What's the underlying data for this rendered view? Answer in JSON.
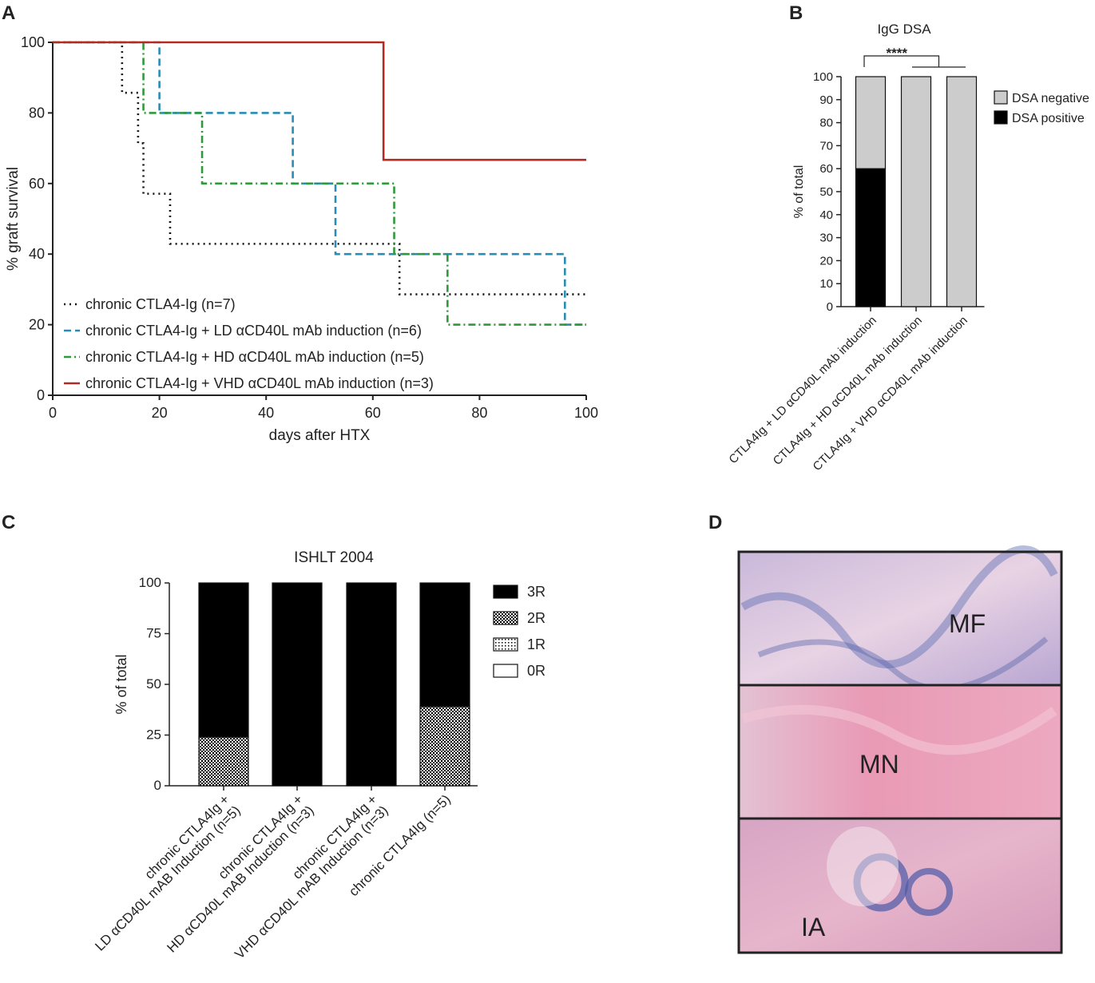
{
  "panel_labels": [
    "A",
    "B",
    "C",
    "D"
  ],
  "image": {
    "labels": [
      "MF",
      "MN",
      "IA"
    ]
  },
  "chart_data": [
    {
      "type": "line",
      "xlabel": "days after HTX",
      "ylabel": "% graft survival",
      "xlim": [
        0,
        100
      ],
      "ylim": [
        0,
        100
      ],
      "xticks": [
        0,
        20,
        40,
        60,
        80,
        100
      ],
      "yticks": [
        0,
        20,
        40,
        60,
        80,
        100
      ],
      "legend": "lower left",
      "series": [
        {
          "name": "chronic CTLA4-Ig (n=7)",
          "color": "#111111",
          "linestyle": "dotted",
          "x": [
            0,
            13,
            13,
            16,
            16,
            17,
            17,
            22,
            22,
            65,
            65,
            100
          ],
          "values": [
            100,
            100,
            85.7,
            85.7,
            71.4,
            71.4,
            57.1,
            57.1,
            42.9,
            42.9,
            28.6,
            28.6
          ]
        },
        {
          "name": "chronic CTLA4-Ig + LD αCD40L mAb induction (n=6)",
          "color": "#2a8cb5",
          "linestyle": "dashed",
          "x": [
            0,
            20,
            20,
            45,
            45,
            53,
            53,
            96,
            96,
            100
          ],
          "values": [
            100,
            100,
            80,
            80,
            60,
            60,
            40,
            40,
            20,
            20
          ]
        },
        {
          "name": "chronic CTLA4-Ig + HD αCD40L mAb induction (n=5)",
          "color": "#2e9a3a",
          "linestyle": "dashdot",
          "x": [
            0,
            17,
            17,
            28,
            28,
            64,
            64,
            74,
            74,
            100
          ],
          "values": [
            100,
            100,
            80,
            80,
            60,
            60,
            40,
            40,
            20,
            20
          ]
        },
        {
          "name": "chronic CTLA4-Ig + VHD αCD40L mAb induction (n=3)",
          "color": "#b22a22",
          "linestyle": "solid",
          "x": [
            0,
            62,
            62,
            100
          ],
          "values": [
            100,
            100,
            66.7,
            66.7
          ]
        }
      ]
    },
    {
      "type": "bar",
      "stacked": true,
      "title": "IgG DSA",
      "ylabel": "% of total",
      "ylim": [
        0,
        100
      ],
      "yticks": [
        0,
        10,
        20,
        30,
        40,
        50,
        60,
        70,
        80,
        90,
        100
      ],
      "legend": "right",
      "annotations": [
        "****"
      ],
      "categories": [
        "CTLA4Ig + LD αCD40L mAb induction",
        "CTLA4Ig + HD αCD40L mAb induction",
        "CTLA4Ig + VHD αCD40L mAb induction"
      ],
      "series": [
        {
          "name": "DSA positive",
          "color": "#000000",
          "values": [
            60,
            0,
            0
          ]
        },
        {
          "name": "DSA negative",
          "color": "#cccccc",
          "values": [
            40,
            100,
            100
          ]
        }
      ]
    },
    {
      "type": "bar",
      "stacked": true,
      "title": "ISHLT 2004",
      "ylabel": "% of total",
      "ylim": [
        0,
        100
      ],
      "yticks": [
        0,
        25,
        50,
        75,
        100
      ],
      "legend": "right",
      "categories": [
        [
          "chronic CTLA4Ig +",
          "LD αCD40L mAB Induction (n=5)"
        ],
        [
          "chronic CTLA4Ig +",
          "HD αCD40L mAB Induction (n=3)"
        ],
        [
          "chronic CTLA4Ig +",
          "VHD αCD40L mAB Induction (n=3)"
        ],
        [
          "chronic CTLA4Ig (n=5)"
        ]
      ],
      "series": [
        {
          "name": "0R",
          "color": "#ffffff",
          "pattern": "none",
          "values": [
            0,
            0,
            0,
            0
          ]
        },
        {
          "name": "1R",
          "color": "#ffffff",
          "pattern": "dots",
          "values": [
            0,
            0,
            0,
            0
          ]
        },
        {
          "name": "2R",
          "color": "#000000",
          "pattern": "checker",
          "values": [
            24,
            0,
            0,
            39
          ]
        },
        {
          "name": "3R",
          "color": "#000000",
          "pattern": "none",
          "values": [
            76,
            100,
            100,
            61
          ]
        }
      ]
    }
  ]
}
